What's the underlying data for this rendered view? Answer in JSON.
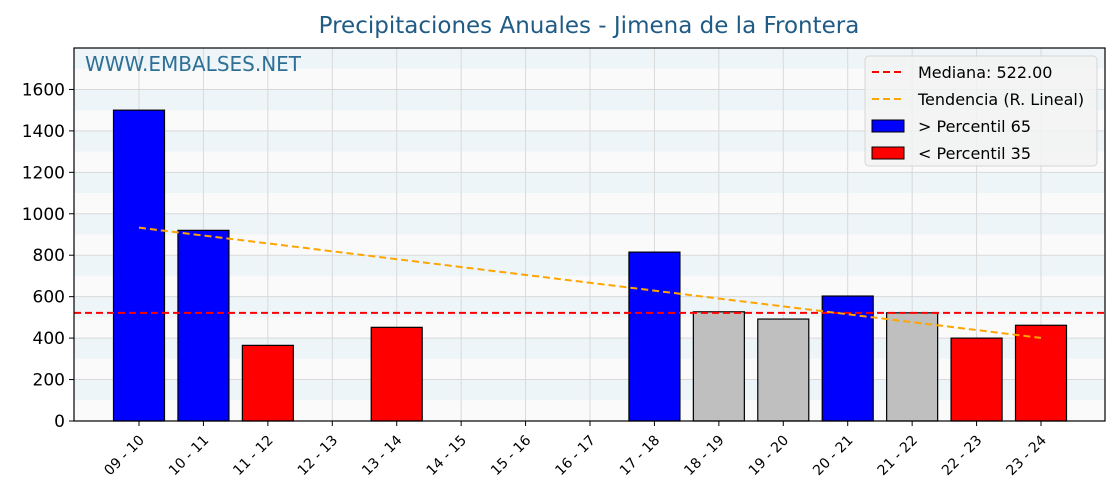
{
  "chart_data": {
    "type": "bar",
    "title": "Precipitaciones Anuales - Jimena de la Frontera",
    "watermark": "WWW.EMBALSES.NET",
    "xlabel": "",
    "ylabel": "",
    "ylim": [
      0,
      1800
    ],
    "yticks": [
      0,
      200,
      400,
      600,
      800,
      1000,
      1200,
      1400,
      1600
    ],
    "grid": true,
    "legend_position": "upper right",
    "categories": [
      "09 - 10",
      "10 - 11",
      "11 - 12",
      "12 - 13",
      "13 - 14",
      "14 - 15",
      "15 - 16",
      "16 - 17",
      "17 - 18",
      "18 - 19",
      "19 - 20",
      "20 - 21",
      "21 - 22",
      "22 - 23",
      "23 - 24"
    ],
    "values": [
      1500,
      920,
      365,
      null,
      452,
      null,
      null,
      null,
      815,
      527,
      492,
      603,
      522,
      400,
      462
    ],
    "bar_classes": [
      "high",
      "high",
      "low",
      "none",
      "low",
      "none",
      "none",
      "none",
      "high",
      "mid",
      "mid",
      "high",
      "mid",
      "low",
      "low"
    ],
    "median": 522.0,
    "trend": {
      "start": 933,
      "end": 401
    },
    "colors": {
      "high": "#0000ff",
      "low": "#ff0000",
      "mid": "#bfbfbf",
      "median_line": "#ff0000",
      "trend_line": "#ffa500",
      "band_a": "#edf5f9",
      "band_b": "#fafafa",
      "grid": "#d9d9d9",
      "title": "#1f5b85",
      "watermark": "#2e6f96"
    },
    "legend": [
      {
        "label": "Mediana: 522.00",
        "kind": "line",
        "color": "#ff0000"
      },
      {
        "label": "Tendencia (R. Lineal)",
        "kind": "line",
        "color": "#ffa500"
      },
      {
        "label": " > Percentil 65",
        "kind": "patch",
        "color": "#0000ff"
      },
      {
        "label": " < Percentil 35",
        "kind": "patch",
        "color": "#ff0000"
      }
    ]
  }
}
